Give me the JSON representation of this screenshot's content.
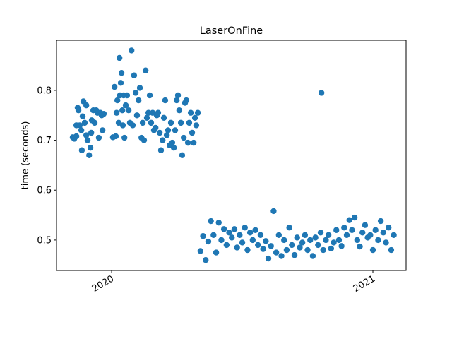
{
  "chart_data": {
    "type": "scatter",
    "title": "LaserOnFine",
    "y_label": "time (seconds)",
    "color": "#1f77b4",
    "x": [
      2019.851,
      2019.857,
      2019.865,
      2019.865,
      2019.87,
      2019.873,
      2019.878,
      2019.884,
      2019.886,
      2019.889,
      2019.892,
      2019.897,
      2019.903,
      2019.903,
      2019.908,
      2019.914,
      2019.919,
      2019.922,
      2019.924,
      2019.93,
      2019.935,
      2019.941,
      2019.946,
      2019.951,
      2019.957,
      2019.962,
      2019.965,
      2019.97,
      2020.005,
      2020.011,
      2020.016,
      2020.019,
      2020.022,
      2020.027,
      2020.03,
      2020.032,
      2020.035,
      2020.038,
      2020.041,
      2020.043,
      2020.046,
      2020.049,
      2020.054,
      2020.059,
      2020.065,
      2020.07,
      2020.076,
      2020.081,
      2020.086,
      2020.092,
      2020.097,
      2020.103,
      2020.108,
      2020.114,
      2020.119,
      2020.124,
      2020.13,
      2020.135,
      2020.141,
      2020.146,
      2020.151,
      2020.157,
      2020.162,
      2020.168,
      2020.173,
      2020.178,
      2020.184,
      2020.189,
      2020.195,
      2020.2,
      2020.205,
      2020.211,
      2020.216,
      2020.222,
      2020.227,
      2020.232,
      2020.238,
      2020.243,
      2020.249,
      2020.254,
      2020.259,
      2020.265,
      2020.27,
      2020.276,
      2020.281,
      2020.286,
      2020.292,
      2020.297,
      2020.303,
      2020.308,
      2020.314,
      2020.319,
      2020.324,
      2020.33,
      2020.34,
      2020.35,
      2020.36,
      2020.37,
      2020.38,
      2020.39,
      2020.4,
      2020.41,
      2020.42,
      2020.43,
      2020.44,
      2020.45,
      2020.46,
      2020.47,
      2020.48,
      2020.49,
      2020.5,
      2020.51,
      2020.52,
      2020.53,
      2020.54,
      2020.55,
      2020.56,
      2020.57,
      2020.58,
      2020.59,
      2020.6,
      2020.61,
      2020.62,
      2020.63,
      2020.64,
      2020.65,
      2020.66,
      2020.67,
      2020.68,
      2020.69,
      2020.7,
      2020.71,
      2020.72,
      2020.73,
      2020.74,
      2020.75,
      2020.76,
      2020.77,
      2020.78,
      2020.79,
      2020.8,
      2020.81,
      2020.82,
      2020.83,
      2020.84,
      2020.85,
      2020.86,
      2020.87,
      2020.88,
      2020.89,
      2020.9,
      2020.91,
      2020.92,
      2020.93,
      2020.94,
      2020.95,
      2020.96,
      2020.97,
      2020.98,
      2020.99,
      2021.0,
      2021.01,
      2021.02,
      2021.03,
      2021.04,
      2021.05,
      2021.06,
      2021.07,
      2021.08,
      2020.803
    ],
    "values": [
      0.706,
      0.703,
      0.708,
      0.73,
      0.765,
      0.76,
      0.73,
      0.72,
      0.68,
      0.748,
      0.778,
      0.735,
      0.77,
      0.71,
      0.7,
      0.67,
      0.685,
      0.715,
      0.74,
      0.76,
      0.735,
      0.76,
      0.755,
      0.705,
      0.755,
      0.75,
      0.72,
      0.753,
      0.706,
      0.807,
      0.708,
      0.755,
      0.78,
      0.735,
      0.865,
      0.79,
      0.815,
      0.835,
      0.76,
      0.73,
      0.79,
      0.705,
      0.77,
      0.79,
      0.76,
      0.735,
      0.88,
      0.73,
      0.83,
      0.795,
      0.75,
      0.78,
      0.805,
      0.705,
      0.735,
      0.7,
      0.84,
      0.745,
      0.755,
      0.79,
      0.735,
      0.755,
      0.72,
      0.725,
      0.75,
      0.755,
      0.715,
      0.68,
      0.7,
      0.745,
      0.78,
      0.71,
      0.72,
      0.69,
      0.735,
      0.695,
      0.685,
      0.72,
      0.78,
      0.79,
      0.76,
      0.735,
      0.67,
      0.705,
      0.775,
      0.78,
      0.695,
      0.735,
      0.755,
      0.715,
      0.695,
      0.745,
      0.73,
      0.755,
      0.478,
      0.508,
      0.46,
      0.497,
      0.538,
      0.51,
      0.475,
      0.535,
      0.5,
      0.522,
      0.49,
      0.515,
      0.505,
      0.522,
      0.485,
      0.51,
      0.495,
      0.525,
      0.48,
      0.515,
      0.5,
      0.52,
      0.49,
      0.51,
      0.482,
      0.498,
      0.463,
      0.488,
      0.558,
      0.475,
      0.51,
      0.468,
      0.5,
      0.48,
      0.525,
      0.49,
      0.47,
      0.505,
      0.485,
      0.495,
      0.51,
      0.48,
      0.5,
      0.468,
      0.505,
      0.49,
      0.515,
      0.48,
      0.5,
      0.51,
      0.483,
      0.495,
      0.52,
      0.5,
      0.488,
      0.525,
      0.51,
      0.54,
      0.52,
      0.545,
      0.5,
      0.487,
      0.515,
      0.53,
      0.505,
      0.51,
      0.48,
      0.52,
      0.5,
      0.538,
      0.515,
      0.495,
      0.525,
      0.48,
      0.51,
      0.795
    ],
    "xlim": [
      2019.789,
      2021.127
    ],
    "xticks": [
      2020,
      2021
    ],
    "ylim": [
      0.439,
      0.9004
    ],
    "yticks": [
      0.5,
      0.6,
      0.7,
      0.8
    ]
  }
}
